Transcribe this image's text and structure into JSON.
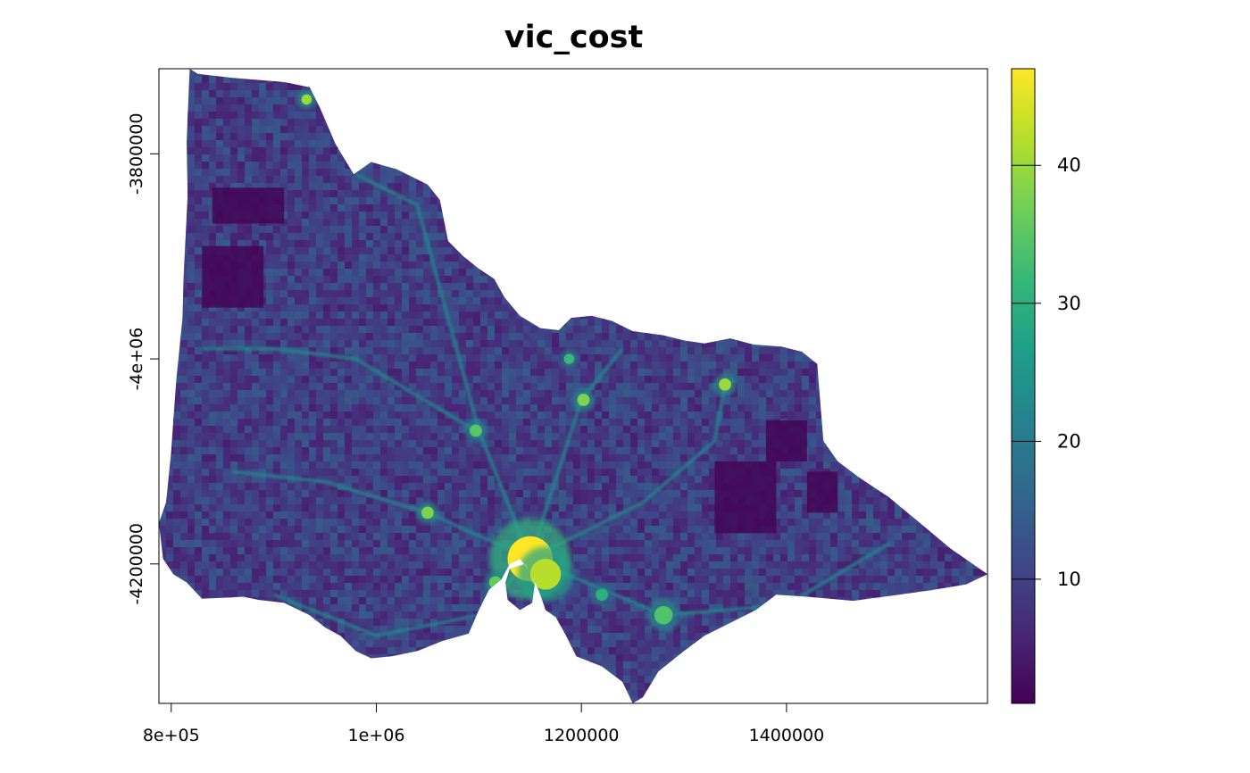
{
  "title": "vic_cost",
  "x_axis": {
    "ticks": [
      {
        "value": 800000,
        "label": "8e+05"
      },
      {
        "value": 1000000,
        "label": "1e+06"
      },
      {
        "value": 1200000,
        "label": "1200000"
      },
      {
        "value": 1400000,
        "label": "1400000"
      }
    ],
    "range": [
      788000,
      1596000
    ]
  },
  "y_axis": {
    "ticks": [
      {
        "value": -3800000,
        "label": "-3800000"
      },
      {
        "value": -4000000,
        "label": "-4e+06"
      },
      {
        "value": -4200000,
        "label": "-4200000"
      }
    ],
    "range": [
      -4336000,
      -3717000
    ]
  },
  "legend": {
    "min": 1,
    "max": 47,
    "ticks": [
      {
        "value": 10,
        "label": "10"
      },
      {
        "value": 20,
        "label": "20"
      },
      {
        "value": 30,
        "label": "30"
      },
      {
        "value": 40,
        "label": "40"
      }
    ],
    "colormap": [
      "#440154",
      "#482878",
      "#3e4989",
      "#31688e",
      "#26828e",
      "#1f9e89",
      "#35b779",
      "#6ece58",
      "#b5de2b",
      "#fde725"
    ]
  },
  "map": {
    "outline": [
      [
        818000,
        -3717000
      ],
      [
        826000,
        -3722000
      ],
      [
        860000,
        -3726000
      ],
      [
        910000,
        -3730000
      ],
      [
        935000,
        -3735000
      ],
      [
        945000,
        -3755000
      ],
      [
        960000,
        -3790000
      ],
      [
        978000,
        -3820000
      ],
      [
        995000,
        -3808000
      ],
      [
        1020000,
        -3815000
      ],
      [
        1050000,
        -3830000
      ],
      [
        1062000,
        -3845000
      ],
      [
        1070000,
        -3885000
      ],
      [
        1085000,
        -3900000
      ],
      [
        1100000,
        -3912000
      ],
      [
        1115000,
        -3922000
      ],
      [
        1125000,
        -3940000
      ],
      [
        1140000,
        -3958000
      ],
      [
        1160000,
        -3970000
      ],
      [
        1178000,
        -3972000
      ],
      [
        1190000,
        -3960000
      ],
      [
        1210000,
        -3958000
      ],
      [
        1230000,
        -3963000
      ],
      [
        1250000,
        -3973000
      ],
      [
        1280000,
        -3977000
      ],
      [
        1300000,
        -3982000
      ],
      [
        1320000,
        -3985000
      ],
      [
        1345000,
        -3980000
      ],
      [
        1368000,
        -3986000
      ],
      [
        1395000,
        -3988000
      ],
      [
        1415000,
        -3993000
      ],
      [
        1430000,
        -4005000
      ],
      [
        1432000,
        -4030000
      ],
      [
        1436000,
        -4080000
      ],
      [
        1450000,
        -4100000
      ],
      [
        1470000,
        -4115000
      ],
      [
        1500000,
        -4135000
      ],
      [
        1530000,
        -4160000
      ],
      [
        1560000,
        -4185000
      ],
      [
        1596000,
        -4210000
      ],
      [
        1575000,
        -4220000
      ],
      [
        1545000,
        -4225000
      ],
      [
        1510000,
        -4230000
      ],
      [
        1465000,
        -4236000
      ],
      [
        1420000,
        -4232000
      ],
      [
        1390000,
        -4230000
      ],
      [
        1370000,
        -4245000
      ],
      [
        1340000,
        -4260000
      ],
      [
        1320000,
        -4270000
      ],
      [
        1300000,
        -4285000
      ],
      [
        1275000,
        -4305000
      ],
      [
        1260000,
        -4330000
      ],
      [
        1250000,
        -4336000
      ],
      [
        1240000,
        -4315000
      ],
      [
        1220000,
        -4300000
      ],
      [
        1195000,
        -4290000
      ],
      [
        1185000,
        -4270000
      ],
      [
        1175000,
        -4252000
      ],
      [
        1165000,
        -4245000
      ],
      [
        1160000,
        -4230000
      ],
      [
        1152000,
        -4210000
      ],
      [
        1140000,
        -4195000
      ],
      [
        1130000,
        -4200000
      ],
      [
        1122000,
        -4215000
      ],
      [
        1110000,
        -4225000
      ],
      [
        1100000,
        -4245000
      ],
      [
        1090000,
        -4268000
      ],
      [
        1065000,
        -4275000
      ],
      [
        1040000,
        -4285000
      ],
      [
        1015000,
        -4290000
      ],
      [
        995000,
        -4292000
      ],
      [
        980000,
        -4285000
      ],
      [
        965000,
        -4270000
      ],
      [
        950000,
        -4262000
      ],
      [
        935000,
        -4250000
      ],
      [
        910000,
        -4238000
      ],
      [
        885000,
        -4235000
      ],
      [
        870000,
        -4232000
      ],
      [
        850000,
        -4233000
      ],
      [
        830000,
        -4234000
      ],
      [
        815000,
        -4218000
      ],
      [
        802000,
        -4210000
      ],
      [
        792000,
        -4195000
      ],
      [
        788000,
        -4160000
      ],
      [
        795000,
        -4140000
      ],
      [
        800000,
        -4090000
      ],
      [
        802000,
        -4060000
      ],
      [
        805000,
        -4020000
      ],
      [
        808000,
        -3990000
      ],
      [
        811000,
        -3960000
      ],
      [
        812000,
        -3920000
      ],
      [
        814000,
        -3880000
      ],
      [
        816000,
        -3840000
      ],
      [
        815000,
        -3790000
      ],
      [
        817000,
        -3740000
      ]
    ],
    "holes": [
      [
        [
          1130000,
          -4205000
        ],
        [
          1145000,
          -4200000
        ],
        [
          1155000,
          -4215000
        ],
        [
          1152000,
          -4238000
        ],
        [
          1140000,
          -4245000
        ],
        [
          1128000,
          -4235000
        ],
        [
          1126000,
          -4218000
        ]
      ]
    ],
    "hotspots": [
      {
        "x": 1150000,
        "y": -4195000,
        "value": 47,
        "r": 22000
      },
      {
        "x": 1165000,
        "y": -4210000,
        "value": 42,
        "r": 15000
      },
      {
        "x": 1050000,
        "y": -4150000,
        "value": 38,
        "r": 6000
      },
      {
        "x": 1097000,
        "y": -4070000,
        "value": 35,
        "r": 6000
      },
      {
        "x": 1202000,
        "y": -4040000,
        "value": 38,
        "r": 6000
      },
      {
        "x": 1340000,
        "y": -4025000,
        "value": 40,
        "r": 6000
      },
      {
        "x": 1280000,
        "y": -4250000,
        "value": 34,
        "r": 9000
      },
      {
        "x": 932000,
        "y": -3747000,
        "value": 40,
        "r": 5000
      },
      {
        "x": 1116000,
        "y": -4218000,
        "value": 36,
        "r": 6000
      },
      {
        "x": 1188000,
        "y": -4000000,
        "value": 32,
        "r": 5000
      },
      {
        "x": 1220000,
        "y": -4230000,
        "value": 30,
        "r": 6000
      }
    ],
    "cold_patches": [
      {
        "x": 840000,
        "y": -3833000,
        "w": 70000,
        "h": 35000
      },
      {
        "x": 830000,
        "y": -3890000,
        "w": 60000,
        "h": 60000
      },
      {
        "x": 1330000,
        "y": -4100000,
        "w": 60000,
        "h": 70000
      },
      {
        "x": 1420000,
        "y": -4110000,
        "w": 30000,
        "h": 40000
      },
      {
        "x": 1380000,
        "y": -4060000,
        "w": 40000,
        "h": 40000
      }
    ],
    "roads": [
      [
        [
          1150000,
          -4195000
        ],
        [
          1100000,
          -4070000
        ],
        [
          1070000,
          -3960000
        ],
        [
          1040000,
          -3850000
        ],
        [
          980000,
          -3820000
        ]
      ],
      [
        [
          1150000,
          -4195000
        ],
        [
          1200000,
          -4040000
        ],
        [
          1240000,
          -3990000
        ]
      ],
      [
        [
          1150000,
          -4195000
        ],
        [
          1260000,
          -4140000
        ],
        [
          1330000,
          -4080000
        ],
        [
          1340000,
          -4025000
        ]
      ],
      [
        [
          1150000,
          -4195000
        ],
        [
          1050000,
          -4150000
        ],
        [
          950000,
          -4120000
        ],
        [
          860000,
          -4110000
        ]
      ],
      [
        [
          1150000,
          -4195000
        ],
        [
          1280000,
          -4250000
        ],
        [
          1400000,
          -4240000
        ],
        [
          1500000,
          -4180000
        ]
      ],
      [
        [
          1097000,
          -4070000
        ],
        [
          980000,
          -4000000
        ],
        [
          900000,
          -3990000
        ],
        [
          830000,
          -3990000
        ]
      ],
      [
        [
          1150000,
          -4195000
        ],
        [
          1100000,
          -4250000
        ],
        [
          1000000,
          -4270000
        ],
        [
          900000,
          -4230000
        ]
      ]
    ]
  }
}
